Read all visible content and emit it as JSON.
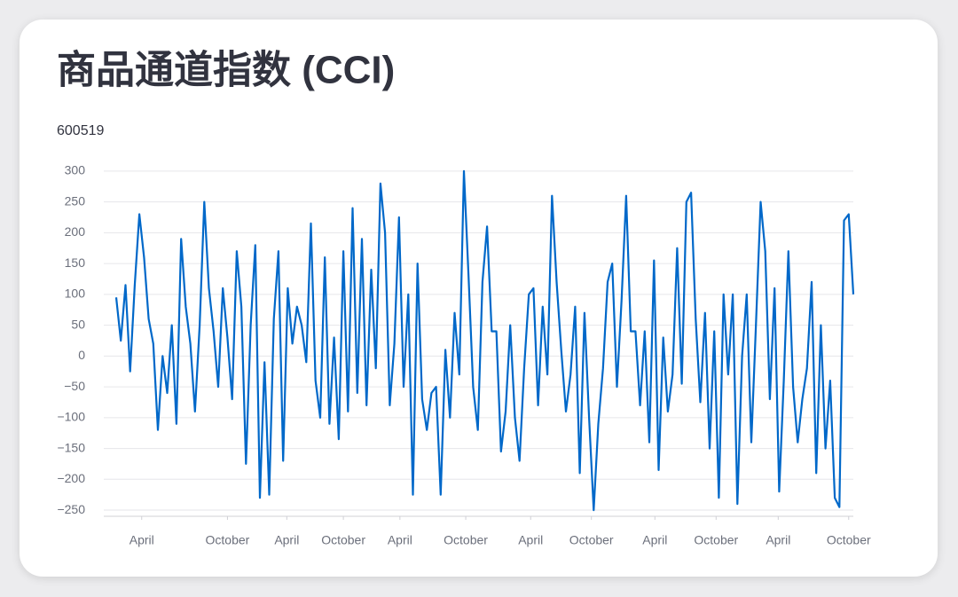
{
  "chart_data": {
    "type": "line",
    "title": "商品通道指数 (CCI)",
    "subtitle": "600519",
    "color": "#0068c9",
    "grid": true,
    "xlim": [
      0,
      159
    ],
    "xticks": [
      {
        "value": 5.5,
        "label": "April"
      },
      {
        "value": 24,
        "label": "October"
      },
      {
        "value": 36.8,
        "label": "April"
      },
      {
        "value": 49,
        "label": "October"
      },
      {
        "value": 61.2,
        "label": "April"
      },
      {
        "value": 75.4,
        "label": "October"
      },
      {
        "value": 89.4,
        "label": "April"
      },
      {
        "value": 102.5,
        "label": "October"
      },
      {
        "value": 116.2,
        "label": "April"
      },
      {
        "value": 129.4,
        "label": "October"
      },
      {
        "value": 142.8,
        "label": "April"
      },
      {
        "value": 158,
        "label": "October"
      }
    ],
    "ylim": [
      -260,
      307
    ],
    "yticks": [
      {
        "value": -250,
        "label": "−250"
      },
      {
        "value": -200,
        "label": "−200"
      },
      {
        "value": -150,
        "label": "−150"
      },
      {
        "value": -100,
        "label": "−100"
      },
      {
        "value": -50,
        "label": "−50"
      },
      0,
      50,
      100,
      150,
      200,
      250,
      300
    ],
    "values": [
      95,
      25,
      115,
      -25,
      115,
      230,
      160,
      60,
      20,
      -120,
      0,
      -60,
      50,
      -110,
      190,
      80,
      20,
      -90,
      50,
      250,
      110,
      40,
      -50,
      110,
      30,
      -70,
      170,
      80,
      -175,
      50,
      180,
      -230,
      -10,
      -225,
      60,
      170,
      -170,
      110,
      20,
      80,
      50,
      -10,
      215,
      -40,
      -100,
      160,
      -110,
      30,
      -135,
      170,
      -90,
      240,
      -60,
      190,
      -80,
      140,
      -20,
      280,
      200,
      -80,
      20,
      225,
      -50,
      100,
      -225,
      150,
      -70,
      -120,
      -60,
      -50,
      -225,
      10,
      -100,
      70,
      -30,
      300,
      130,
      -50,
      -120,
      120,
      210,
      40,
      40,
      -155,
      -90,
      50,
      -100,
      -170,
      -20,
      100,
      110,
      -80,
      80,
      -30,
      260,
      120,
      10,
      -90,
      -30,
      80,
      -190,
      70,
      -100,
      -250,
      -110,
      -20,
      120,
      150,
      -50,
      90,
      260,
      40,
      40,
      -80,
      40,
      -140,
      155,
      -185,
      30,
      -90,
      -30,
      175,
      -45,
      250,
      265,
      60,
      -75,
      70,
      -150,
      40,
      -230,
      100,
      -30,
      100,
      -240,
      0,
      100,
      -140,
      50,
      250,
      170,
      -70,
      110,
      -220,
      -40,
      170,
      -50,
      -140,
      -70,
      -20,
      120,
      -190,
      50,
      -150,
      -40,
      -230,
      -245,
      220,
      230,
      100
    ]
  }
}
